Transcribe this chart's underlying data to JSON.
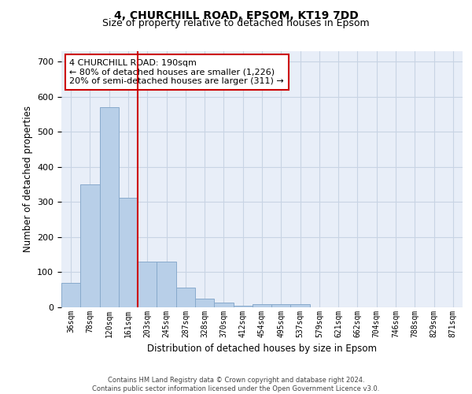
{
  "title_line1": "4, CHURCHILL ROAD, EPSOM, KT19 7DD",
  "title_line2": "Size of property relative to detached houses in Epsom",
  "xlabel": "Distribution of detached houses by size in Epsom",
  "ylabel": "Number of detached properties",
  "bar_labels": [
    "36sqm",
    "78sqm",
    "120sqm",
    "161sqm",
    "203sqm",
    "245sqm",
    "287sqm",
    "328sqm",
    "370sqm",
    "412sqm",
    "454sqm",
    "495sqm",
    "537sqm",
    "579sqm",
    "621sqm",
    "662sqm",
    "704sqm",
    "746sqm",
    "788sqm",
    "829sqm",
    "871sqm"
  ],
  "bar_heights": [
    70,
    350,
    570,
    313,
    130,
    130,
    57,
    25,
    14,
    4,
    10,
    10,
    10,
    0,
    0,
    0,
    0,
    0,
    0,
    0,
    0
  ],
  "bar_color": "#b8cfe8",
  "bar_edge_color": "#88aacc",
  "vline_color": "#cc0000",
  "annotation_text": "4 CHURCHILL ROAD: 190sqm\n← 80% of detached houses are smaller (1,226)\n20% of semi-detached houses are larger (311) →",
  "annotation_box_edgecolor": "#cc0000",
  "annotation_facecolor": "white",
  "ylim": [
    0,
    730
  ],
  "yticks": [
    0,
    100,
    200,
    300,
    400,
    500,
    600,
    700
  ],
  "footer_text": "Contains HM Land Registry data © Crown copyright and database right 2024.\nContains public sector information licensed under the Open Government Licence v3.0.",
  "grid_color": "#c8d4e4",
  "background_color": "#e8eef8"
}
